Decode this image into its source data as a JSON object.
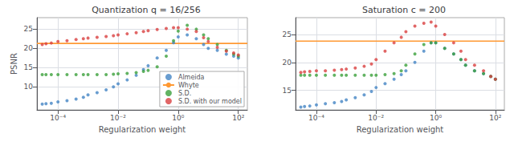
{
  "chart_data": [
    {
      "type": "scatter",
      "title": "Quantization q = 16/256",
      "x_label": "Regularization weight",
      "y_label": "PSNR",
      "log": "x",
      "grid": true,
      "legend": "lower right",
      "xlim": [
        2e-05,
        200
      ],
      "xticks": [
        {
          "value": 0.0001,
          "label": "10⁻⁴"
        },
        {
          "value": 0.01,
          "label": "10⁻²"
        },
        {
          "value": 1,
          "label": "10⁰"
        },
        {
          "value": 100,
          "label": "10²"
        }
      ],
      "ylim": [
        4,
        28
      ],
      "yticks": [
        10,
        15,
        20,
        25
      ],
      "series": [
        {
          "name": "Almeida",
          "type": "scatter",
          "color": "#4484c4",
          "x": [
            3e-05,
            4e-05,
            6e-05,
            0.0001,
            0.0002,
            0.0004,
            0.0007,
            0.001,
            0.002,
            0.004,
            0.007,
            0.01,
            0.02,
            0.04,
            0.07,
            0.1,
            0.2,
            0.4,
            0.7,
            1.0,
            2.0,
            4.0,
            7.0,
            10.0,
            20.0,
            40.0,
            70.0,
            100.0
          ],
          "values": [
            5.5,
            5.6,
            5.7,
            6.1,
            6.4,
            6.8,
            7.3,
            7.9,
            8.5,
            9.2,
            10.0,
            10.8,
            11.8,
            13.0,
            14.5,
            15.5,
            17.5,
            19.5,
            21.5,
            23.0,
            23.5,
            22.5,
            21.0,
            20.0,
            19.5,
            18.5,
            18.0,
            17.5
          ]
        },
        {
          "name": "Whyte",
          "type": "hline",
          "color": "#ff9933",
          "value": 21.3
        },
        {
          "name": "S.D.",
          "type": "scatter",
          "color": "#3ba03b",
          "x": [
            3e-05,
            4e-05,
            6e-05,
            0.0001,
            0.0002,
            0.0004,
            0.0007,
            0.001,
            0.002,
            0.004,
            0.007,
            0.01,
            0.02,
            0.04,
            0.07,
            0.1,
            0.2,
            0.4,
            0.7,
            1.0,
            2.0,
            4.0,
            7.0,
            10.0,
            20.0,
            40.0,
            70.0,
            100.0
          ],
          "values": [
            13.2,
            13.2,
            13.2,
            13.2,
            13.2,
            13.2,
            13.2,
            13.2,
            13.2,
            13.2,
            13.3,
            13.4,
            13.5,
            13.7,
            14.0,
            14.3,
            15.2,
            18.0,
            22.0,
            24.5,
            26.0,
            25.0,
            23.5,
            22.5,
            21.0,
            19.5,
            18.5,
            18.0
          ]
        },
        {
          "name": "S.D. with our model",
          "type": "scatter",
          "color": "#d94040",
          "x": [
            3e-05,
            4e-05,
            6e-05,
            0.0001,
            0.0002,
            0.0004,
            0.0007,
            0.001,
            0.002,
            0.004,
            0.007,
            0.01,
            0.02,
            0.04,
            0.07,
            0.1,
            0.2,
            0.4,
            0.7,
            1.0,
            2.0,
            4.0,
            7.0,
            10.0,
            20.0,
            40.0,
            70.0,
            100.0
          ],
          "values": [
            21.0,
            21.2,
            21.4,
            21.8,
            22.0,
            22.3,
            22.5,
            22.7,
            22.9,
            23.1,
            23.3,
            23.5,
            23.8,
            24.1,
            24.4,
            24.6,
            24.9,
            25.2,
            25.4,
            25.4,
            25.0,
            24.4,
            22.8,
            21.8,
            20.3,
            19.3,
            18.8,
            18.3
          ]
        }
      ]
    },
    {
      "type": "scatter",
      "title": "Saturation c = 200",
      "x_label": "Regularization weight",
      "log": "x",
      "grid": true,
      "xlim": [
        2e-05,
        200
      ],
      "xticks": [
        {
          "value": 0.0001,
          "label": "10⁻⁴"
        },
        {
          "value": 0.01,
          "label": "10⁻²"
        },
        {
          "value": 1,
          "label": "10⁰"
        },
        {
          "value": 100,
          "label": "10²"
        }
      ],
      "ylim": [
        11.5,
        28
      ],
      "yticks": [
        15,
        20,
        25
      ],
      "series": [
        {
          "name": "Almeida",
          "type": "scatter",
          "color": "#4484c4",
          "x": [
            3e-05,
            4e-05,
            6e-05,
            0.0001,
            0.0002,
            0.0004,
            0.0007,
            0.001,
            0.002,
            0.004,
            0.007,
            0.01,
            0.02,
            0.04,
            0.07,
            0.1,
            0.2,
            0.4,
            0.7,
            1.0,
            2.0,
            4.0,
            7.0,
            10.0,
            20.0,
            40.0,
            70.0,
            100.0
          ],
          "values": [
            12.0,
            12.1,
            12.2,
            12.4,
            12.6,
            12.8,
            13.0,
            13.3,
            13.7,
            14.2,
            14.8,
            15.5,
            16.2,
            17.0,
            17.8,
            18.5,
            20.0,
            22.0,
            23.5,
            23.5,
            22.5,
            21.5,
            20.5,
            19.5,
            18.5,
            18.0,
            17.5,
            17.0
          ]
        },
        {
          "name": "Whyte",
          "type": "hline",
          "color": "#ff9933",
          "value": 23.8
        },
        {
          "name": "S.D.",
          "type": "scatter",
          "color": "#3ba03b",
          "x": [
            3e-05,
            4e-05,
            6e-05,
            0.0001,
            0.0002,
            0.0004,
            0.0007,
            0.001,
            0.002,
            0.004,
            0.007,
            0.01,
            0.02,
            0.04,
            0.07,
            0.1,
            0.2,
            0.4,
            0.7,
            1.0,
            2.0,
            4.0,
            7.0,
            10.0,
            20.0,
            40.0,
            70.0,
            100.0
          ],
          "values": [
            17.7,
            17.7,
            17.7,
            17.7,
            17.7,
            17.7,
            17.7,
            17.7,
            17.7,
            17.7,
            17.7,
            17.7,
            17.8,
            18.0,
            18.5,
            19.5,
            21.5,
            23.2,
            23.5,
            23.5,
            22.5,
            21.5,
            20.5,
            19.5,
            18.5,
            18.0,
            17.5,
            17.0
          ]
        },
        {
          "name": "S.D. with our model",
          "type": "scatter",
          "color": "#d94040",
          "x": [
            3e-05,
            4e-05,
            6e-05,
            0.0001,
            0.0002,
            0.0004,
            0.0007,
            0.001,
            0.002,
            0.004,
            0.007,
            0.01,
            0.02,
            0.04,
            0.07,
            0.1,
            0.2,
            0.4,
            0.7,
            1.0,
            2.0,
            4.0,
            7.0,
            10.0,
            20.0,
            40.0,
            70.0,
            100.0
          ],
          "values": [
            18.2,
            18.3,
            18.4,
            18.5,
            18.5,
            18.6,
            18.7,
            18.8,
            19.0,
            19.3,
            19.7,
            20.5,
            22.0,
            23.5,
            24.5,
            25.5,
            26.5,
            27.0,
            27.2,
            26.5,
            25.0,
            23.5,
            22.0,
            20.5,
            19.5,
            18.5,
            17.5,
            17.0
          ]
        }
      ]
    }
  ]
}
